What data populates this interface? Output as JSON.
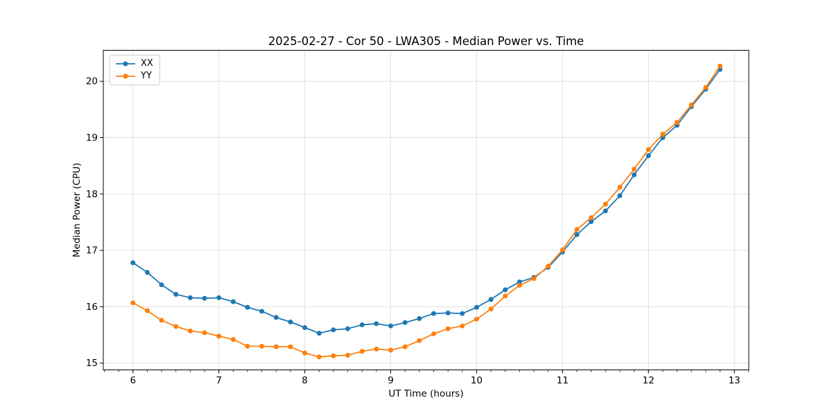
{
  "chart_data": {
    "type": "line",
    "title": "2025-02-27 - Cor 50 - LWA305 - Median Power vs. Time",
    "xlabel": "UT Time (hours)",
    "ylabel": "Median Power (CPU)",
    "xlim": [
      5.655,
      13.168
    ],
    "ylim": [
      14.88,
      20.55
    ],
    "x_ticks": [
      6,
      7,
      8,
      9,
      10,
      11,
      12,
      13
    ],
    "y_ticks": [
      15,
      16,
      17,
      18,
      19,
      20
    ],
    "x_minor_step_hours": 0.166667,
    "grid": true,
    "grid_color": "#e0e0e0",
    "spine_color": "#000000",
    "legend_position": "upper-left",
    "x": [
      6.0,
      6.167,
      6.333,
      6.5,
      6.667,
      6.833,
      7.0,
      7.167,
      7.333,
      7.5,
      7.667,
      7.833,
      8.0,
      8.167,
      8.333,
      8.5,
      8.667,
      8.833,
      9.0,
      9.167,
      9.333,
      9.5,
      9.667,
      9.833,
      10.0,
      10.167,
      10.333,
      10.5,
      10.667,
      10.833,
      11.0,
      11.167,
      11.333,
      11.5,
      11.667,
      11.833,
      12.0,
      12.167,
      12.333,
      12.5,
      12.667,
      12.833
    ],
    "series": [
      {
        "name": "XX",
        "color": "#1f77b4",
        "values": [
          16.78,
          16.61,
          16.39,
          16.22,
          16.16,
          16.15,
          16.16,
          16.09,
          15.99,
          15.92,
          15.81,
          15.73,
          15.63,
          15.53,
          15.59,
          15.61,
          15.68,
          15.7,
          15.66,
          15.72,
          15.79,
          15.88,
          15.89,
          15.88,
          15.99,
          16.13,
          16.3,
          16.44,
          16.52,
          16.7,
          16.97,
          17.28,
          17.51,
          17.7,
          17.97,
          18.34,
          18.68,
          19.0,
          19.22,
          19.55,
          19.86,
          20.21
        ]
      },
      {
        "name": "YY",
        "color": "#ff7f0e",
        "values": [
          16.07,
          15.93,
          15.76,
          15.65,
          15.57,
          15.54,
          15.48,
          15.42,
          15.3,
          15.3,
          15.29,
          15.29,
          15.18,
          15.11,
          15.13,
          15.14,
          15.21,
          15.25,
          15.23,
          15.29,
          15.4,
          15.52,
          15.61,
          15.66,
          15.78,
          15.96,
          16.19,
          16.38,
          16.5,
          16.72,
          17.01,
          17.37,
          17.58,
          17.82,
          18.12,
          18.44,
          18.79,
          19.06,
          19.27,
          19.58,
          19.89,
          20.27
        ]
      }
    ]
  }
}
